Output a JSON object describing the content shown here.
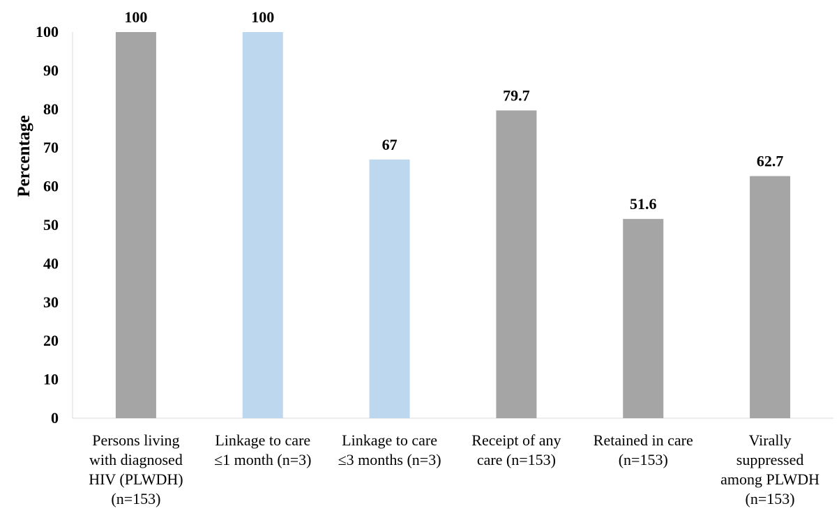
{
  "chart_data": {
    "type": "bar",
    "title": "",
    "xlabel": "",
    "ylabel": "Percentage",
    "ylim": [
      0,
      100
    ],
    "yticks": [
      0,
      10,
      20,
      30,
      40,
      50,
      60,
      70,
      80,
      90,
      100
    ],
    "grid": false,
    "categories": [
      [
        "Persons living",
        "with diagnosed",
        "HIV (PLWDH)",
        "(n=153)"
      ],
      [
        "Linkage to care",
        "≤1 month (n=3)"
      ],
      [
        "Linkage to care",
        "≤3 months (n=3)"
      ],
      [
        "Receipt of any",
        "care (n=153)"
      ],
      [
        "Retained in care",
        "(n=153)"
      ],
      [
        "Virally",
        "suppressed",
        "among PLWDH",
        "(n=153)"
      ]
    ],
    "values": [
      100,
      100,
      67,
      79.7,
      51.6,
      62.7
    ],
    "data_labels": [
      "100",
      "100",
      "67",
      "79.7",
      "51.6",
      "62.7"
    ],
    "bar_colors": [
      "#a5a5a5",
      "#bdd7ee",
      "#bdd7ee",
      "#a5a5a5",
      "#a5a5a5",
      "#a5a5a5"
    ]
  }
}
